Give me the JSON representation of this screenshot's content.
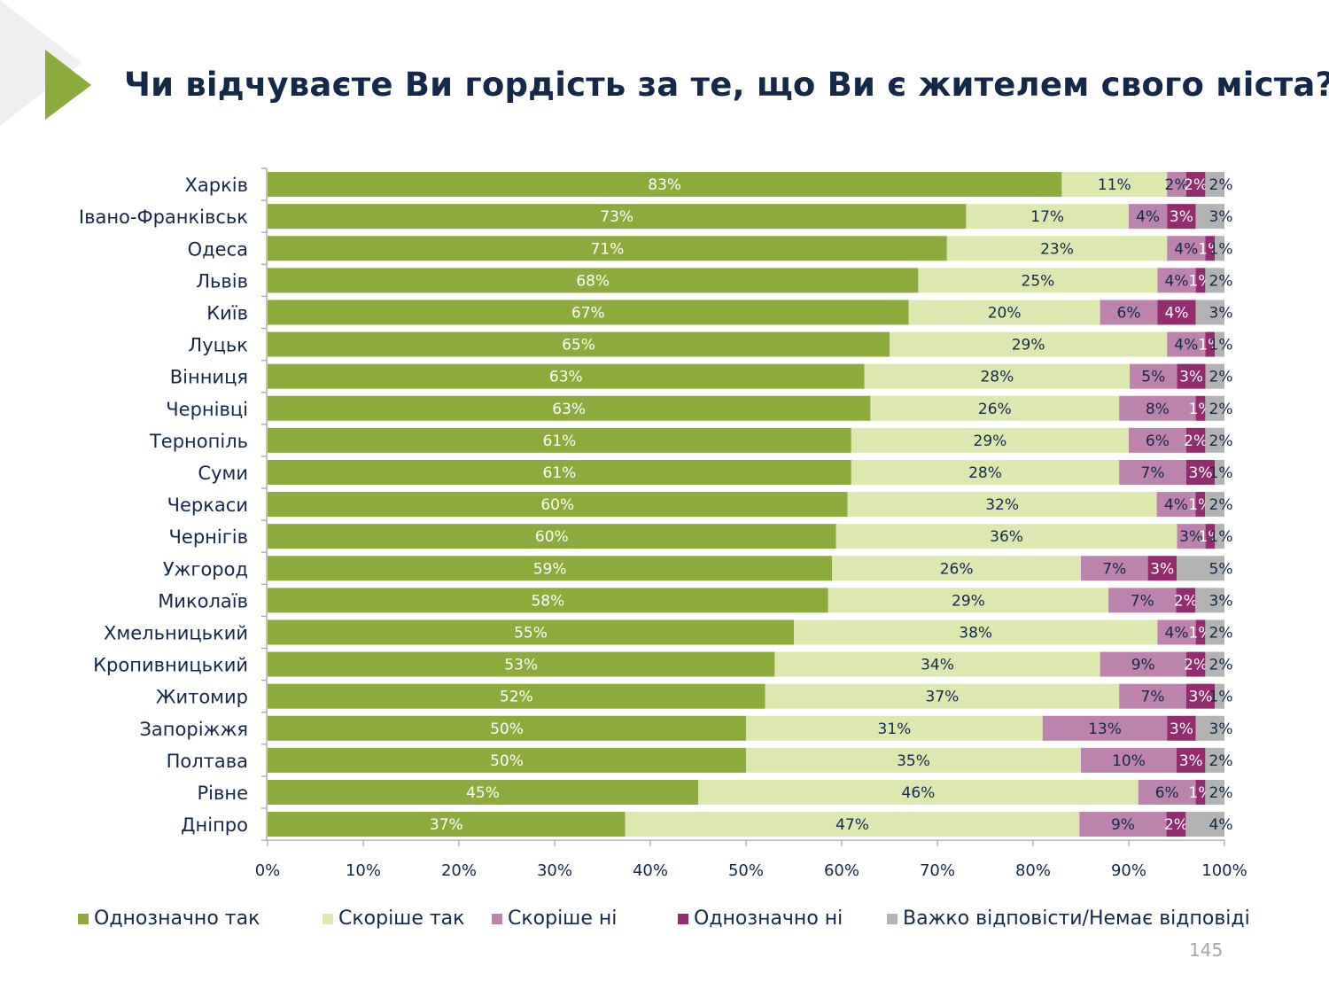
{
  "slide": {
    "title": "Чи відчуваєте Ви гордість за те, що Ви є жителем свого міста?",
    "page_number": "145",
    "accent_color": "#8dab3c",
    "decor_color": "#efefef"
  },
  "chart_data": {
    "type": "bar",
    "orientation": "horizontal",
    "stacked": true,
    "normalized": true,
    "title": "Чи відчуваєте Ви гордість за те, що Ви є жителем свого міста?",
    "xlabel": "",
    "ylabel": "",
    "xlim": [
      0,
      100
    ],
    "x_ticks": [
      "0%",
      "10%",
      "20%",
      "30%",
      "40%",
      "50%",
      "60%",
      "70%",
      "80%",
      "90%",
      "100%"
    ],
    "grid": false,
    "legend_position": "bottom",
    "categories": [
      "Харків",
      "Івано-Франківськ",
      "Одеса",
      "Львів",
      "Київ",
      "Луцьк",
      "Вінниця",
      "Чернівці",
      "Тернопіль",
      "Суми",
      "Черкаси",
      "Чернігів",
      "Ужгород",
      "Миколаїв",
      "Хмельницький",
      "Кропивницький",
      "Житомир",
      "Запоріжжя",
      "Полтава",
      "Рівне",
      "Дніпро"
    ],
    "series": [
      {
        "name": "Однозначно так",
        "color": "#8dab3c",
        "label_color": "#ffffff",
        "values": [
          83,
          73,
          71,
          68,
          67,
          65,
          63,
          63,
          61,
          61,
          60,
          60,
          59,
          58,
          55,
          53,
          52,
          50,
          50,
          45,
          37
        ]
      },
      {
        "name": "Скоріше так",
        "color": "#dde8b0",
        "label_color": "#14284a",
        "values": [
          11,
          17,
          23,
          25,
          20,
          29,
          28,
          26,
          29,
          28,
          32,
          36,
          26,
          29,
          38,
          34,
          37,
          31,
          35,
          46,
          47
        ]
      },
      {
        "name": "Скоріше ні",
        "color": "#bc84ad",
        "label_color": "#14284a",
        "values": [
          2,
          4,
          4,
          4,
          6,
          4,
          5,
          8,
          6,
          7,
          4,
          3,
          7,
          7,
          4,
          9,
          7,
          13,
          10,
          6,
          9
        ]
      },
      {
        "name": "Однозначно ні",
        "color": "#922c6f",
        "label_color": "#ffffff",
        "values": [
          2,
          3,
          1,
          1,
          4,
          1,
          3,
          1,
          2,
          3,
          1,
          1,
          3,
          2,
          1,
          2,
          3,
          3,
          3,
          1,
          2
        ]
      },
      {
        "name": "Важко відповісти/Немає відповіді",
        "color": "#b3b3b3",
        "label_color": "#14284a",
        "values": [
          2,
          3,
          1,
          2,
          3,
          1,
          2,
          2,
          2,
          1,
          2,
          1,
          5,
          3,
          2,
          2,
          1,
          3,
          2,
          2,
          4
        ]
      }
    ]
  }
}
